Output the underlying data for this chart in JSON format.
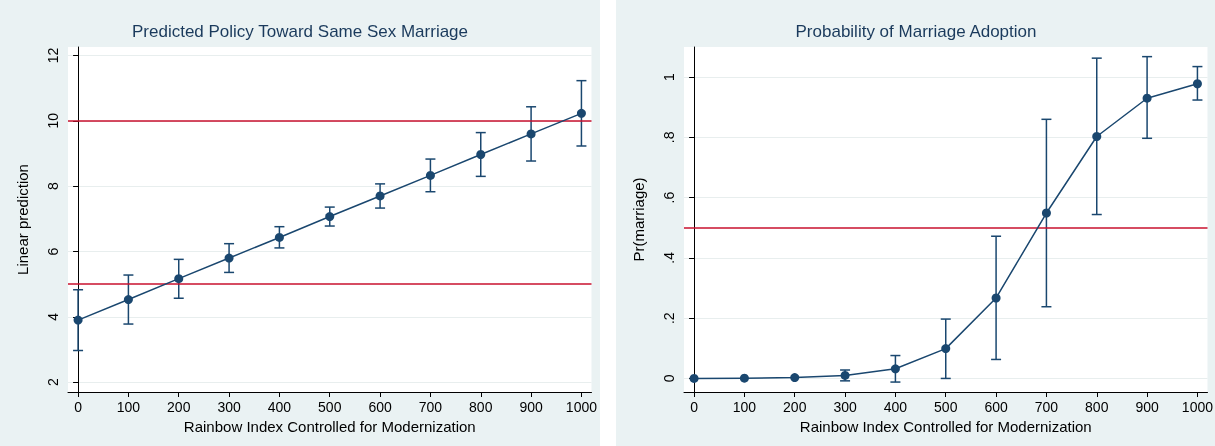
{
  "chart_data": [
    {
      "type": "line",
      "title": "Predicted Policy Toward Same Sex Marriage",
      "xlabel": "Rainbow Index Controlled for Modernization",
      "ylabel": "Linear prediction",
      "x": [
        0,
        100,
        200,
        300,
        400,
        500,
        600,
        700,
        800,
        900,
        1000
      ],
      "series": [
        {
          "color": "#1a476f",
          "values": [
            3.9,
            4.53,
            5.17,
            5.8,
            6.43,
            7.07,
            7.7,
            8.33,
            8.97,
            9.6,
            10.23
          ],
          "errors": [
            [
              2.97,
              4.83
            ],
            [
              3.78,
              5.28
            ],
            [
              4.57,
              5.76
            ],
            [
              5.36,
              6.24
            ],
            [
              6.11,
              6.76
            ],
            [
              6.78,
              7.36
            ],
            [
              7.33,
              8.07
            ],
            [
              7.83,
              8.83
            ],
            [
              8.3,
              9.64
            ],
            [
              8.77,
              10.43
            ],
            [
              9.23,
              11.23
            ]
          ]
        }
      ],
      "xlim": [
        -20,
        1020
      ],
      "xticks": [
        0,
        100,
        200,
        300,
        400,
        500,
        600,
        700,
        800,
        900,
        1000
      ],
      "ylim": [
        1.7,
        12.26
      ],
      "yticks": [
        2,
        4,
        6,
        8,
        10,
        12
      ],
      "ref_lines": [
        {
          "axis": "y",
          "value": 10,
          "color": "#c8102e"
        },
        {
          "axis": "y",
          "value": 5,
          "color": "#c8102e"
        }
      ],
      "grid": "y",
      "marker": "circle",
      "line_style": "solid"
    },
    {
      "type": "line",
      "title": "Probability of Marriage Adoption",
      "xlabel": "Rainbow Index Controlled for Modernization",
      "ylabel": "Pr(marriage)",
      "x": [
        0,
        100,
        200,
        300,
        400,
        500,
        600,
        700,
        800,
        900,
        1000
      ],
      "series": [
        {
          "color": "#1a476f",
          "values": [
            0,
            0.001,
            0.003,
            0.01,
            0.032,
            0.099,
            0.267,
            0.549,
            0.803,
            0.93,
            0.978
          ],
          "errors": [
            null,
            null,
            null,
            [
              -0.008,
              0.028
            ],
            [
              -0.012,
              0.076
            ],
            [
              0,
              0.197
            ],
            [
              0.063,
              0.472
            ],
            [
              0.238,
              0.86
            ],
            [
              0.544,
              1.063
            ],
            [
              0.797,
              1.068
            ],
            [
              0.924,
              1.035
            ]
          ]
        }
      ],
      "xlim": [
        -20,
        1020
      ],
      "xticks": [
        0,
        100,
        200,
        300,
        400,
        500,
        600,
        700,
        800,
        900,
        1000
      ],
      "ylim": [
        -0.045,
        1.1
      ],
      "yticks": [
        0,
        {
          "value": 0.2,
          "label": ".2"
        },
        {
          "value": 0.4,
          "label": ".4"
        },
        {
          "value": 0.6,
          "label": ".6"
        },
        {
          "value": 0.8,
          "label": ".8"
        },
        1
      ],
      "ref_lines": [
        {
          "axis": "y",
          "value": 0.5,
          "color": "#c8102e"
        }
      ],
      "grid": "y",
      "marker": "circle",
      "line_style": "solid"
    }
  ]
}
